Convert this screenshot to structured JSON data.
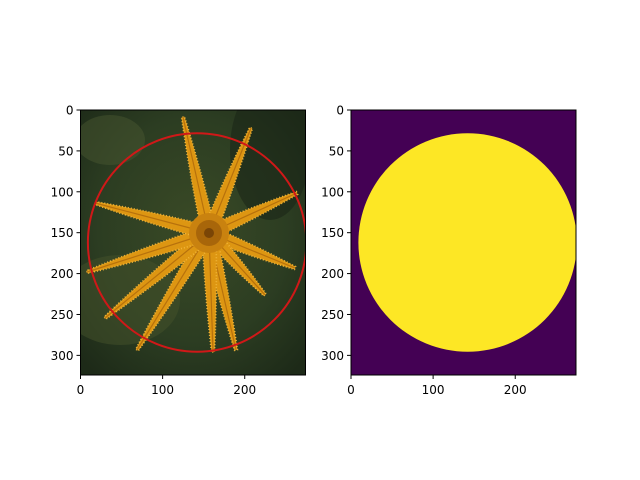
{
  "chart_data": [
    {
      "type": "image",
      "xlim": [
        0,
        274
      ],
      "ylim": [
        324,
        0
      ],
      "xticks": [
        "0",
        "100",
        "200"
      ],
      "xtick_values": [
        0,
        100,
        200
      ],
      "yticks": [
        "0",
        "50",
        "100",
        "150",
        "200",
        "250",
        "300"
      ],
      "ytick_values": [
        0,
        50,
        100,
        150,
        200,
        250,
        300
      ],
      "image": "photo of orange starfish on dark green background",
      "overlay": {
        "shape": "circle",
        "color": "#d01818",
        "center": [
          142,
          162
        ],
        "radius": 133
      }
    },
    {
      "type": "image",
      "xlim": [
        0,
        274
      ],
      "ylim": [
        324,
        0
      ],
      "xticks": [
        "0",
        "100",
        "200"
      ],
      "xtick_values": [
        0,
        100,
        200
      ],
      "yticks": [
        "0",
        "50",
        "100",
        "150",
        "200",
        "250",
        "300"
      ],
      "yticks_values": [
        0,
        50,
        100,
        150,
        200,
        250,
        300
      ],
      "ytick_values": [
        0,
        50,
        100,
        150,
        200,
        250,
        300
      ],
      "image": "binary mask",
      "colors": {
        "background": "#440154",
        "foreground": "#fde725"
      },
      "mask": {
        "shape": "circle",
        "center": [
          142,
          162
        ],
        "radius": 133
      }
    }
  ]
}
